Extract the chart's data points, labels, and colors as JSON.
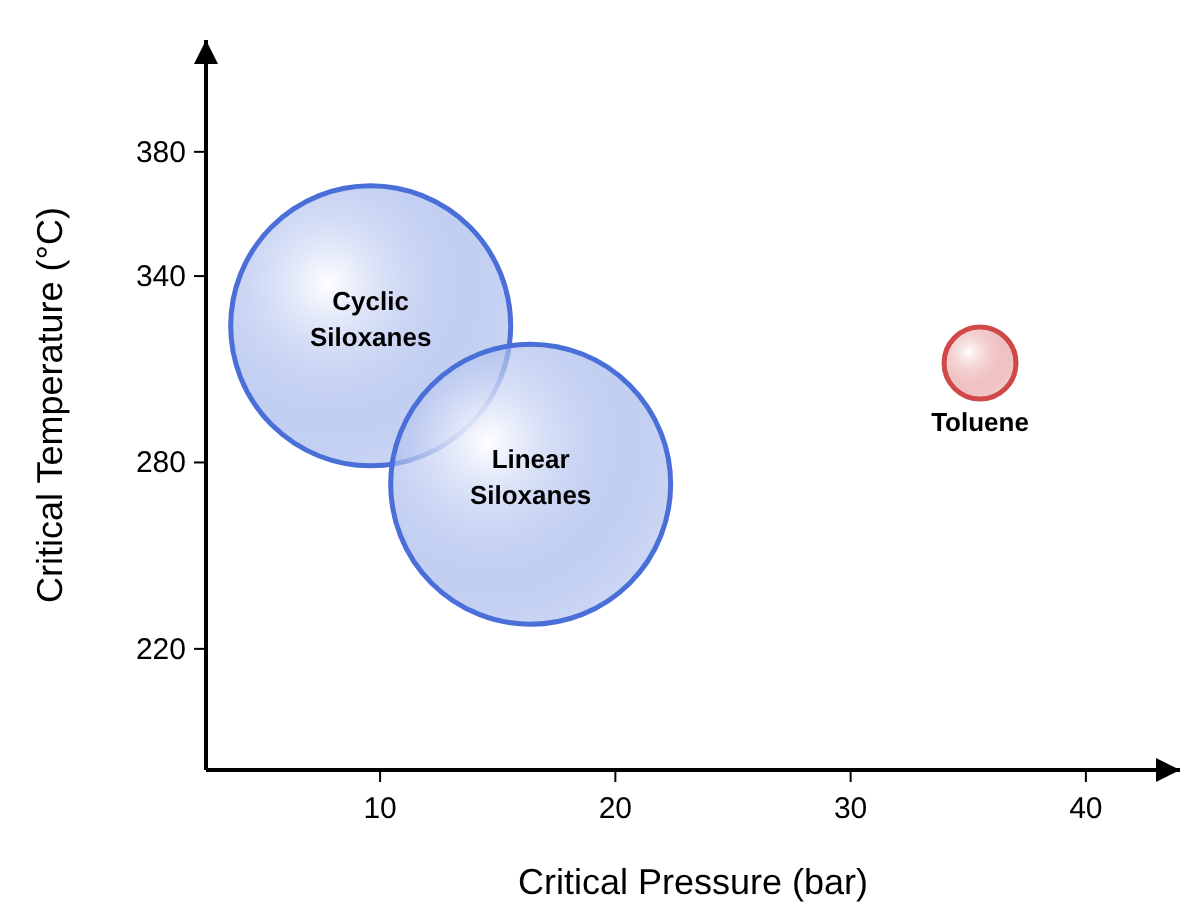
{
  "chart_data": {
    "type": "bubble",
    "xlabel": "Critical Pressure (bar)",
    "ylabel": "Critical Temperature (°C)",
    "xlim": [
      2.6,
      44
    ],
    "xticks": [
      10,
      20,
      30,
      40
    ],
    "ylim": [
      181,
      416
    ],
    "yticks": [
      220,
      280,
      340,
      380
    ],
    "series": [
      {
        "name": "Cyclic Siloxanes",
        "color": "#4a6fd8",
        "x": [
          9.6
        ],
        "values": [
          324
        ],
        "sizes": [
          1
        ]
      },
      {
        "name": "Linear Siloxanes",
        "color": "#4a6fd8",
        "x": [
          16.4
        ],
        "values": [
          273
        ],
        "sizes": [
          1
        ]
      },
      {
        "name": "Toluene",
        "color": "#d04848",
        "x": [
          35.5
        ],
        "values": [
          312
        ],
        "sizes": [
          0.066
        ]
      }
    ]
  }
}
